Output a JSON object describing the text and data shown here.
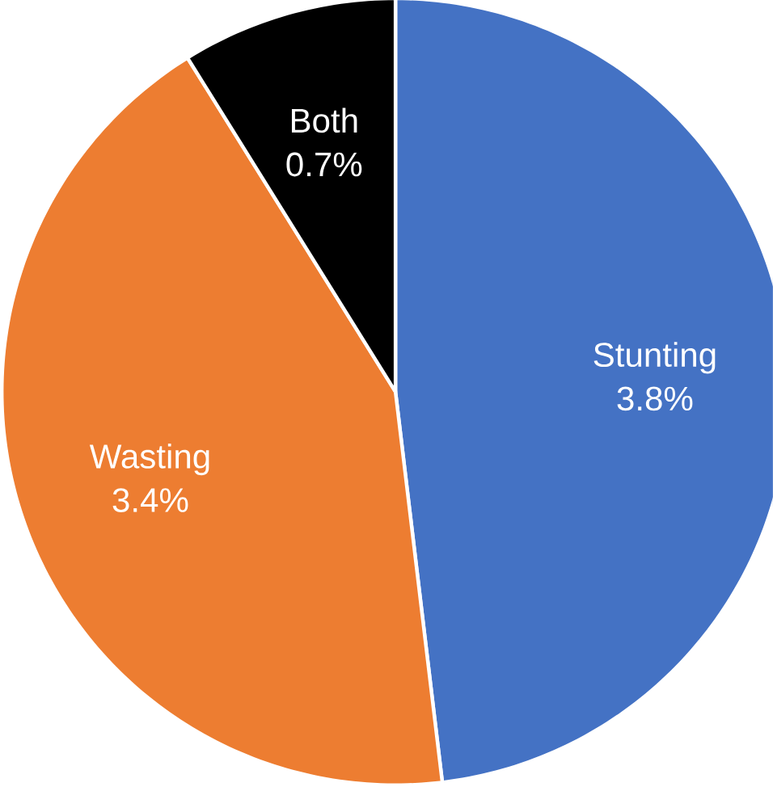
{
  "chart_data": {
    "type": "pie",
    "categories": [
      "Stunting",
      "Wasting",
      "Both"
    ],
    "values": [
      3.8,
      3.4,
      0.7
    ],
    "colors": [
      "#4472c4",
      "#ed7d31",
      "#000000"
    ],
    "value_labels": [
      "3.8%",
      "3.4%",
      "0.7%"
    ]
  }
}
